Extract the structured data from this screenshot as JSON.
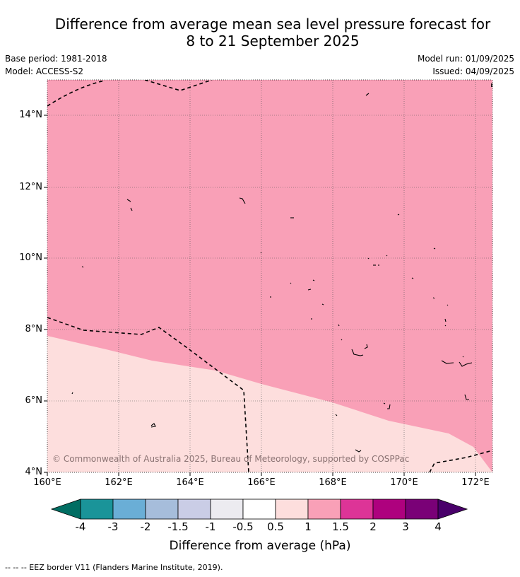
{
  "header": {
    "title_line1": "Difference from average mean sea level pressure forecast for",
    "title_line2": "8 to 21 September 2025",
    "base_period": "Base period: 1981-2018",
    "model": "Model: ACCESS-S2",
    "model_run": "Model run: 01/09/2025",
    "issued": "Issued: 04/09/2025"
  },
  "map": {
    "lon_range": [
      160,
      172.5
    ],
    "lat_range": [
      4,
      15
    ],
    "lat_ticks": [
      "14°N",
      "12°N",
      "10°N",
      "8°N",
      "6°N",
      "4°N"
    ],
    "lon_ticks": [
      "160°E",
      "162°E",
      "164°E",
      "166°E",
      "168°E",
      "170°E",
      "172°E"
    ],
    "credit": "© Commonwealth of Australia 2025, Bureau of Meteorology, supported by COSPPac",
    "colors": {
      "band_1_to_1_5": "#f9a0b7",
      "band_0_5_to_1": "#fddedd"
    }
  },
  "colorbar": {
    "label": "Difference from average (hPa)",
    "ticks": [
      "-4",
      "-3",
      "-2",
      "-1.5",
      "-1",
      "-0.5",
      "0.5",
      "1",
      "1.5",
      "2",
      "3",
      "4"
    ],
    "colors": [
      "#016e63",
      "#1a9499",
      "#6aaed6",
      "#a6bddb",
      "#cacde6",
      "#ecebf0",
      "#ffffff",
      "#fddedd",
      "#f9a0b7",
      "#dd3497",
      "#ae017e",
      "#7a0177",
      "#49006a"
    ]
  },
  "footer": {
    "legend": "--  --  -- EEZ border V11 (Flanders Marine Institute, 2019)."
  }
}
